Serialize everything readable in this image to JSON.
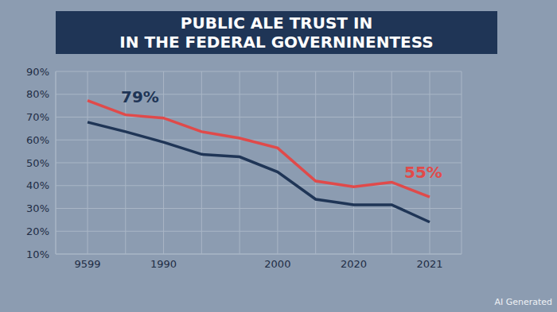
{
  "chart_data": {
    "type": "line",
    "title": [
      "PUBLIC ALE TRUST IN",
      "IN THE FEDERAL GOVERNINENTESS"
    ],
    "categories": [
      "9599",
      null,
      "1990",
      null,
      null,
      "2000",
      null,
      "2020",
      null,
      "2021"
    ],
    "series": [
      {
        "color": "#e04a4a",
        "values": [
          77.3,
          71,
          69.6,
          63.6,
          60.8,
          56.5,
          42,
          39.5,
          41.5,
          35
        ]
      },
      {
        "color": "#1f3556",
        "values": [
          67.8,
          63.6,
          59,
          53.7,
          52.6,
          46,
          34,
          31.6,
          31.6,
          24
        ]
      }
    ],
    "ylim": [
      10,
      90
    ],
    "yticks": [
      {
        "value": 10,
        "label": "10%"
      },
      {
        "value": 20,
        "label": "20%"
      },
      {
        "value": 30,
        "label": "30%"
      },
      {
        "value": 40,
        "label": "40%"
      },
      {
        "value": 50,
        "label": "50%"
      },
      {
        "value": 60,
        "label": "60%"
      },
      {
        "value": 70,
        "label": "70%"
      },
      {
        "value": 80,
        "label": "80%"
      },
      {
        "value": 90,
        "label": "90%"
      }
    ],
    "grid": true,
    "annotations": [
      "79%",
      "55%",
      "AI Generated"
    ]
  }
}
